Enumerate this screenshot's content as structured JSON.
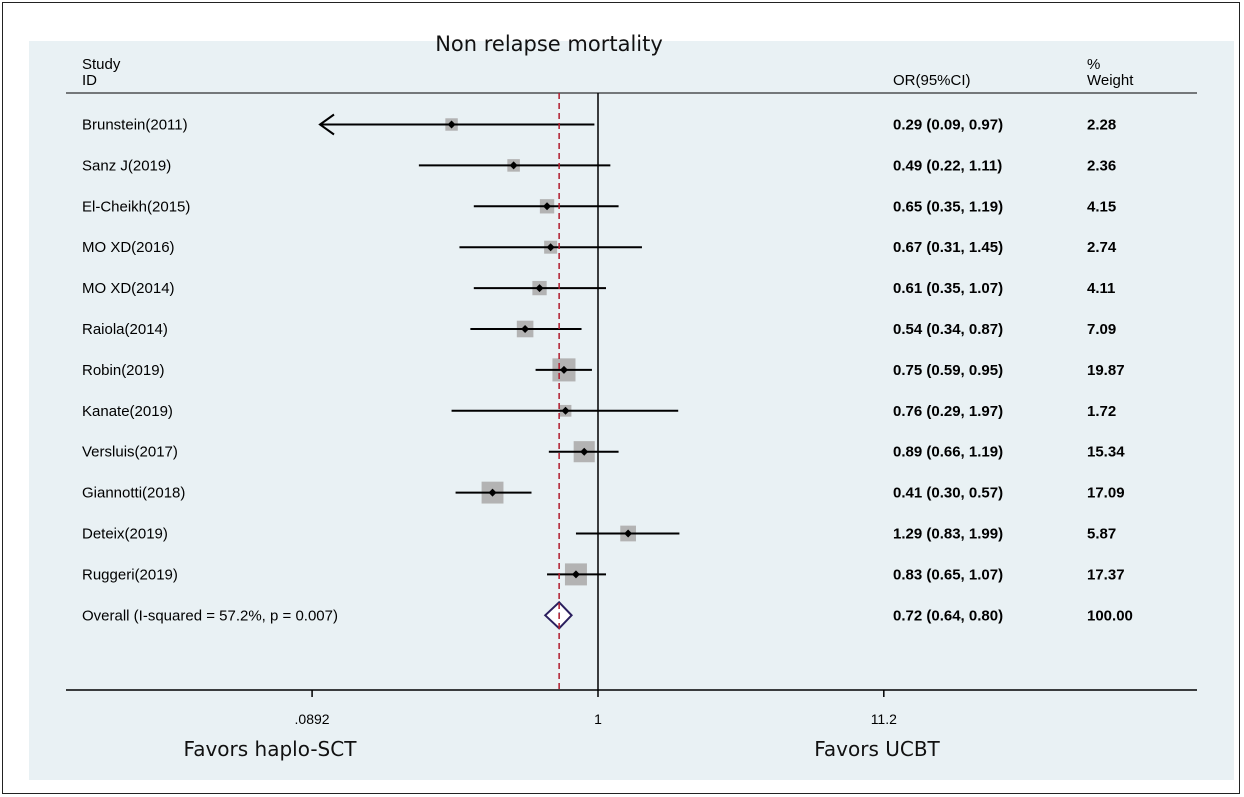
{
  "chart_data": {
    "type": "forest",
    "title": "Non relapse mortality",
    "headers": {
      "study": [
        "Study",
        "ID"
      ],
      "effect": "OR(95%CI)",
      "weight": [
        "%",
        "Weight"
      ]
    },
    "x_scale": "log",
    "x_ticks": [
      ".0892",
      "1",
      "11.2"
    ],
    "x_tick_values": [
      0.0892,
      1,
      11.2
    ],
    "reference_line": 1,
    "overall_line": 0.72,
    "favors_left": "Favors haplo-SCT",
    "favors_right": "Favors UCBT",
    "studies": [
      {
        "label": "Brunstein(2011)",
        "or": 0.29,
        "lo": 0.09,
        "hi": 0.97,
        "ci": "0.29 (0.09, 0.97)",
        "weight": "2.28",
        "arrow_left": true
      },
      {
        "label": "Sanz J(2019)",
        "or": 0.49,
        "lo": 0.22,
        "hi": 1.11,
        "ci": "0.49 (0.22, 1.11)",
        "weight": "2.36"
      },
      {
        "label": "El-Cheikh(2015)",
        "or": 0.65,
        "lo": 0.35,
        "hi": 1.19,
        "ci": "0.65 (0.35, 1.19)",
        "weight": "4.15"
      },
      {
        "label": "MO XD(2016)",
        "or": 0.67,
        "lo": 0.31,
        "hi": 1.45,
        "ci": "0.67 (0.31, 1.45)",
        "weight": "2.74"
      },
      {
        "label": "MO XD(2014)",
        "or": 0.61,
        "lo": 0.35,
        "hi": 1.07,
        "ci": "0.61 (0.35, 1.07)",
        "weight": "4.11"
      },
      {
        "label": "Raiola(2014)",
        "or": 0.54,
        "lo": 0.34,
        "hi": 0.87,
        "ci": "0.54 (0.34, 0.87)",
        "weight": "7.09"
      },
      {
        "label": "Robin(2019)",
        "or": 0.75,
        "lo": 0.59,
        "hi": 0.95,
        "ci": "0.75 (0.59, 0.95)",
        "weight": "19.87"
      },
      {
        "label": "Kanate(2019)",
        "or": 0.76,
        "lo": 0.29,
        "hi": 1.97,
        "ci": "0.76 (0.29, 1.97)",
        "weight": "1.72"
      },
      {
        "label": "Versluis(2017)",
        "or": 0.89,
        "lo": 0.66,
        "hi": 1.19,
        "ci": "0.89 (0.66, 1.19)",
        "weight": "15.34"
      },
      {
        "label": "Giannotti(2018)",
        "or": 0.41,
        "lo": 0.3,
        "hi": 0.57,
        "ci": "0.41 (0.30, 0.57)",
        "weight": "17.09"
      },
      {
        "label": "Deteix(2019)",
        "or": 1.29,
        "lo": 0.83,
        "hi": 1.99,
        "ci": "1.29 (0.83, 1.99)",
        "weight": "5.87"
      },
      {
        "label": "Ruggeri(2019)",
        "or": 0.83,
        "lo": 0.65,
        "hi": 1.07,
        "ci": "0.83 (0.65, 1.07)",
        "weight": "17.37"
      }
    ],
    "overall": {
      "label": "Overall  (I-squared = 57.2%, p = 0.007)",
      "or": 0.72,
      "lo": 0.64,
      "hi": 0.8,
      "ci": "0.72 (0.64, 0.80)",
      "weight": "100.00"
    }
  },
  "colors": {
    "panel": "#e9f1f4",
    "marker_box": "#b3b3b3",
    "ci_line": "#000000",
    "reference_line": "#000000",
    "overall_line": "#b01c2e",
    "diamond": "#2a1f5e"
  }
}
